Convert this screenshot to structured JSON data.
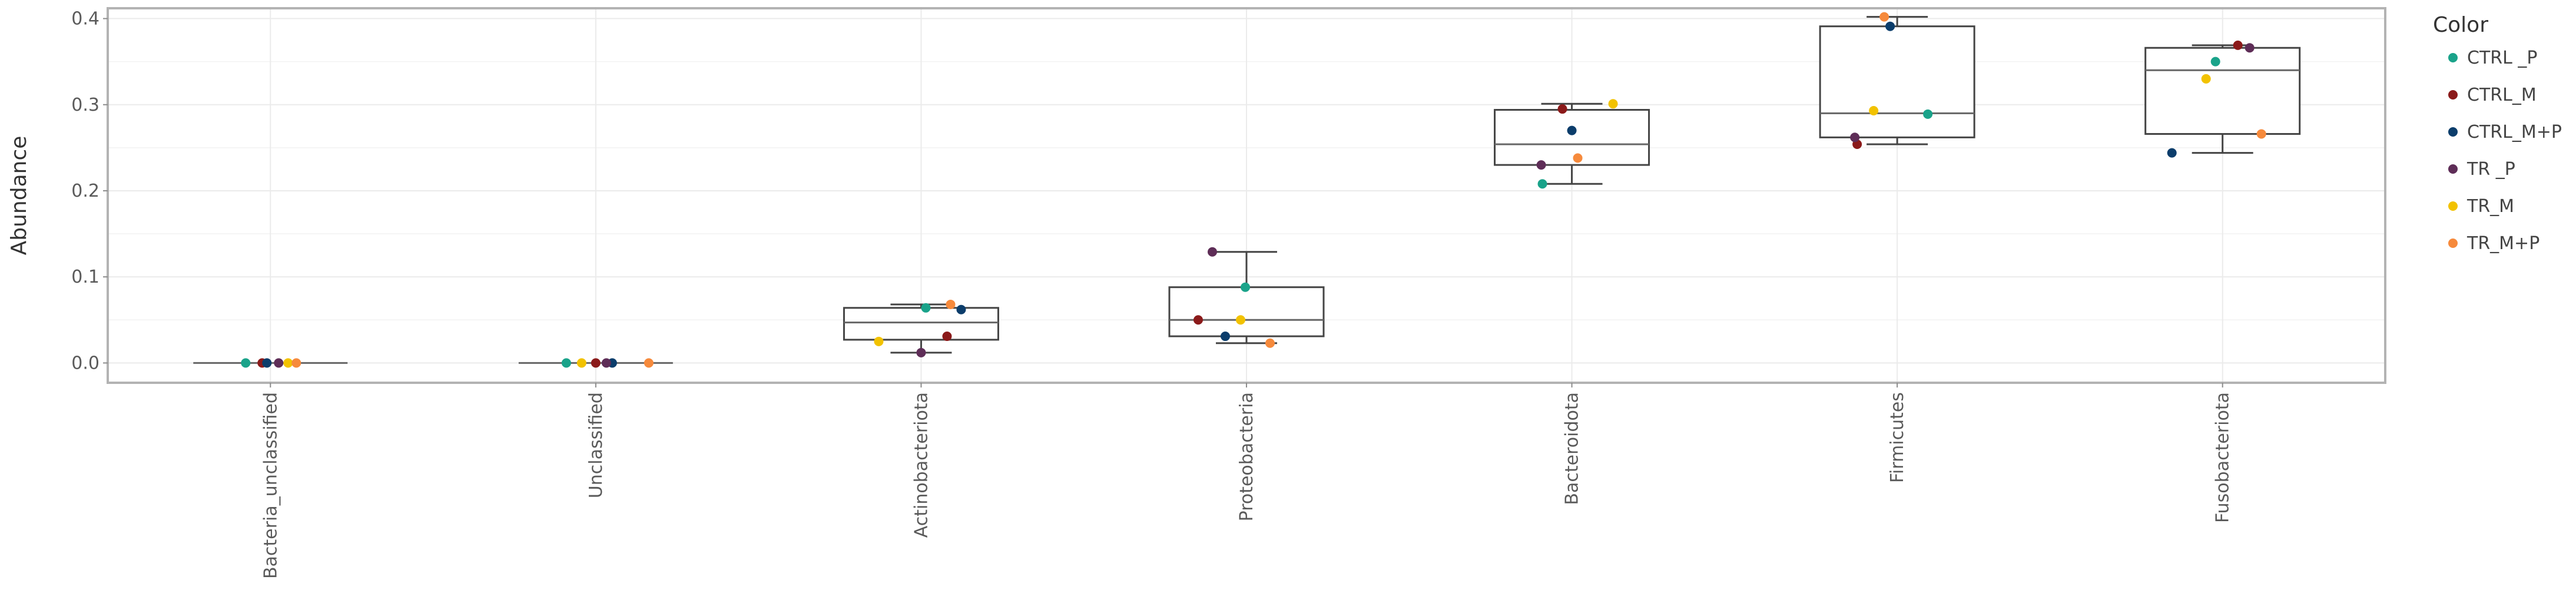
{
  "chart_data": {
    "type": "box",
    "title": "",
    "xlabel": "",
    "ylabel": "Abundance",
    "ylim": [
      -0.023,
      0.412
    ],
    "yticks": [
      0.0,
      0.1,
      0.2,
      0.3,
      0.4
    ],
    "ytick_labels": [
      "0.0",
      "0.1",
      "0.2",
      "0.3",
      "0.4"
    ],
    "grid": true,
    "legend_position": "right",
    "legend_title": "Color",
    "legend": [
      {
        "name": "CTRL _P",
        "color": "#1aa38a"
      },
      {
        "name": "CTRL_M",
        "color": "#8b1a1a"
      },
      {
        "name": "CTRL_M+P",
        "color": "#0b3d6b"
      },
      {
        "name": "TR _P",
        "color": "#5e2d57"
      },
      {
        "name": "TR_M",
        "color": "#f2c200"
      },
      {
        "name": "TR_M+P",
        "color": "#f68a3c"
      }
    ],
    "categories": [
      "Bacteria_unclassified",
      "Unclassified",
      "Actinobacteriota",
      "Proteobacteria",
      "Bacteroidota",
      "Firmicutes",
      "Fusobacteriota"
    ],
    "boxes": [
      {
        "min": 0.0,
        "q1": 0.0,
        "median": 0.0,
        "q3": 0.0,
        "max": 0.0
      },
      {
        "min": 0.0,
        "q1": 0.0,
        "median": 0.0,
        "q3": 0.0,
        "max": 0.0
      },
      {
        "min": 0.012,
        "q1": 0.027,
        "median": 0.047,
        "q3": 0.064,
        "max": 0.068
      },
      {
        "min": 0.023,
        "q1": 0.031,
        "median": 0.05,
        "q3": 0.088,
        "max": 0.129
      },
      {
        "min": 0.208,
        "q1": 0.23,
        "median": 0.254,
        "q3": 0.294,
        "max": 0.301
      },
      {
        "min": 0.254,
        "q1": 0.262,
        "median": 0.29,
        "q3": 0.391,
        "max": 0.402
      },
      {
        "min": 0.244,
        "q1": 0.266,
        "median": 0.34,
        "q3": 0.366,
        "max": 0.369
      }
    ],
    "series": [
      {
        "name": "CTRL _P",
        "values": [
          0.0,
          0.0,
          0.064,
          0.088,
          0.208,
          0.289,
          0.35
        ]
      },
      {
        "name": "CTRL_M",
        "values": [
          0.0,
          0.0,
          0.031,
          0.05,
          0.295,
          0.254,
          0.369
        ]
      },
      {
        "name": "CTRL_M+P",
        "values": [
          0.0,
          0.0,
          0.062,
          0.031,
          0.27,
          0.391,
          0.244
        ]
      },
      {
        "name": "TR _P",
        "values": [
          0.0,
          0.0,
          0.012,
          0.129,
          0.23,
          0.262,
          0.366
        ]
      },
      {
        "name": "TR_M",
        "values": [
          0.0,
          0.0,
          0.025,
          0.05,
          0.301,
          0.293,
          0.33
        ]
      },
      {
        "name": "TR_M+P",
        "values": [
          0.0,
          0.0,
          0.068,
          0.023,
          0.238,
          0.402,
          0.266
        ]
      }
    ]
  }
}
